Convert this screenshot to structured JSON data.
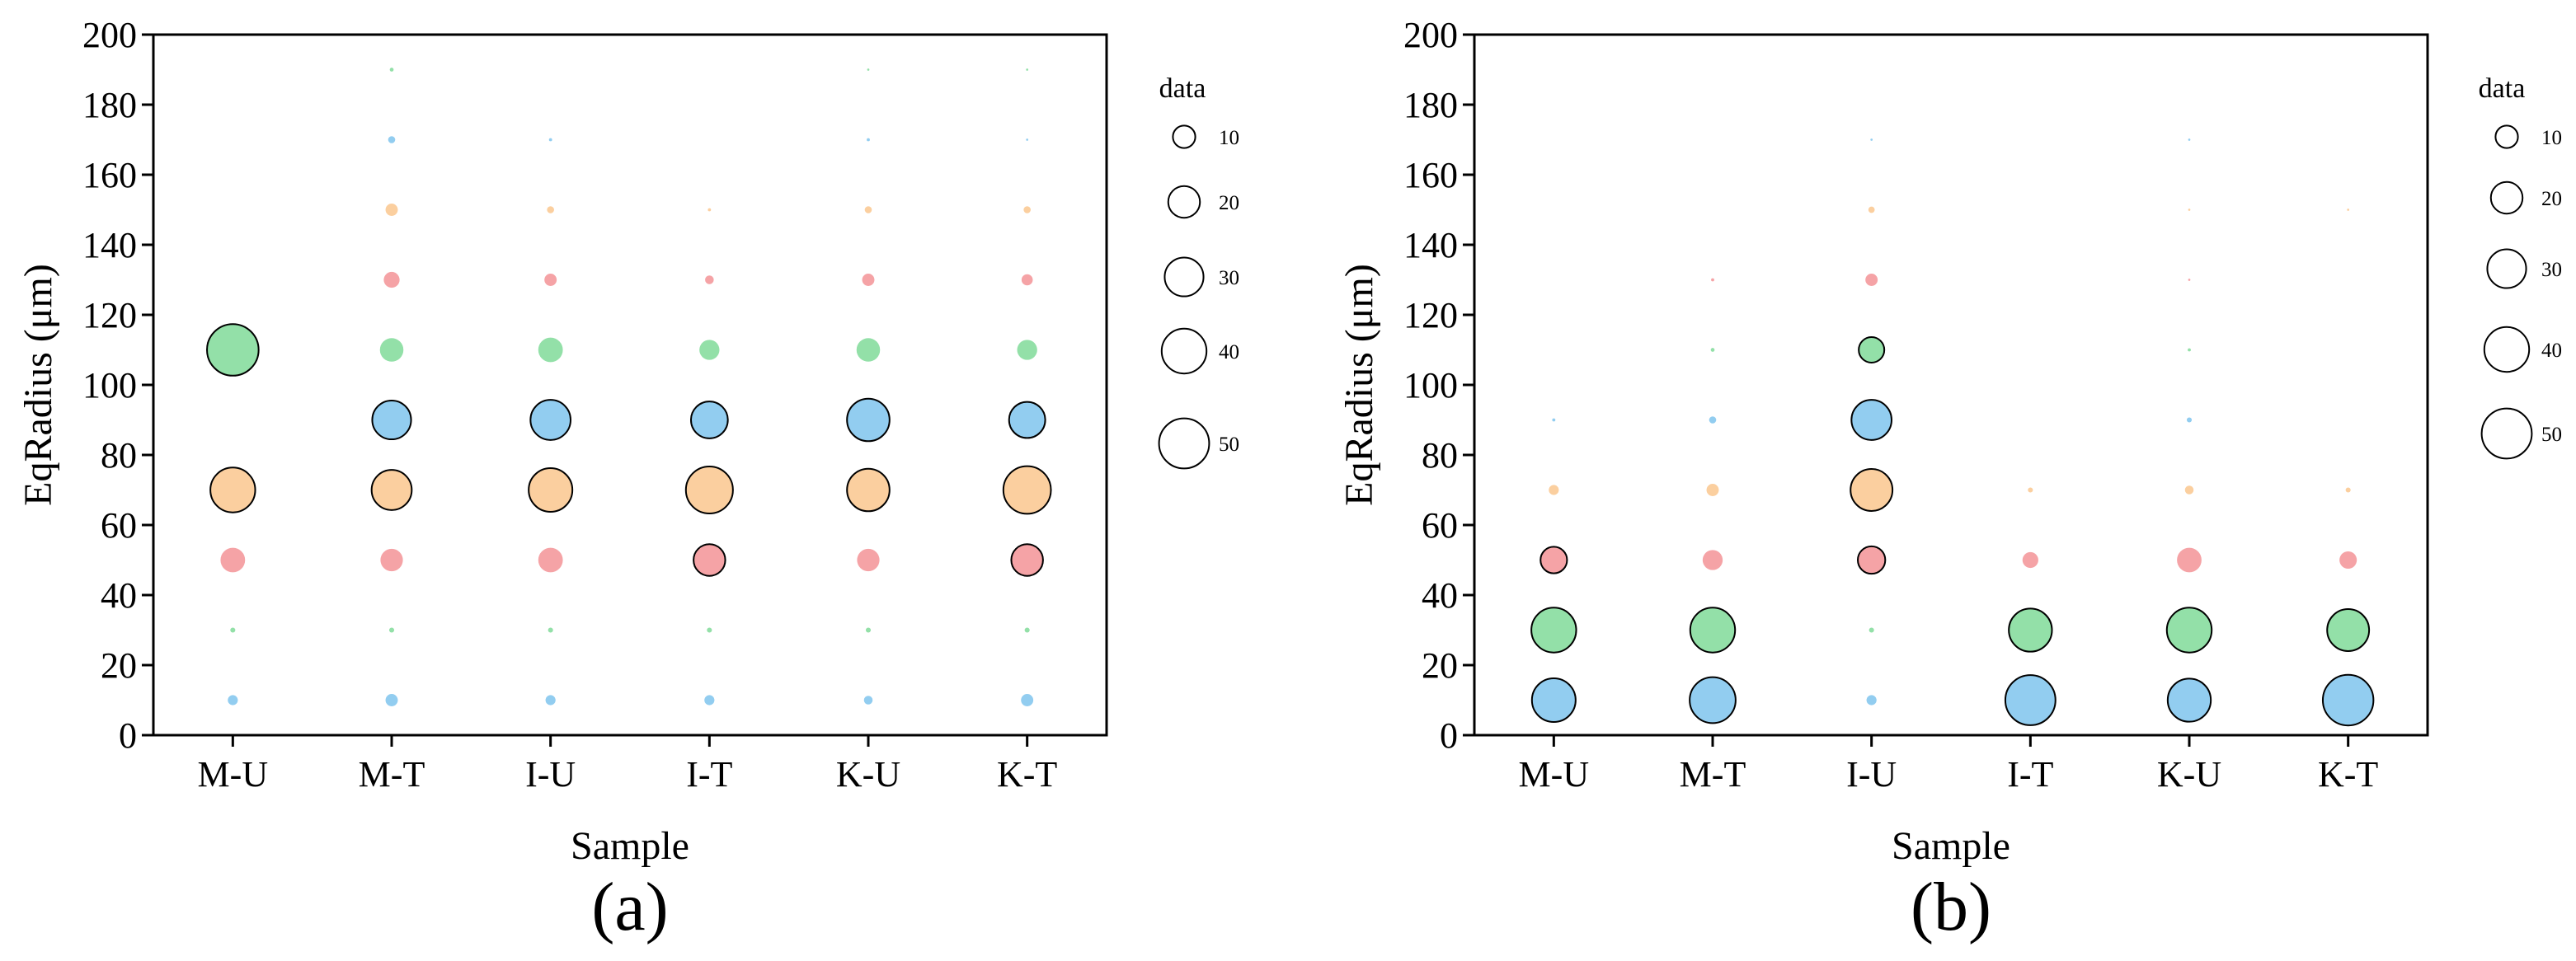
{
  "chart_data": [
    {
      "type": "scatter",
      "panel_label": "(a)",
      "xlabel": "Sample",
      "ylabel": "EqRadius (μm)",
      "categories": [
        "M-U",
        "M-T",
        "I-U",
        "I-T",
        "K-U",
        "K-T"
      ],
      "ylim": [
        0,
        200
      ],
      "yticks": [
        0,
        20,
        40,
        60,
        80,
        100,
        120,
        140,
        160,
        180,
        200
      ],
      "grid": false,
      "y_levels": [
        10,
        30,
        50,
        70,
        90,
        110,
        130,
        150,
        170,
        190
      ],
      "level_colors": [
        "#92cdf0",
        "#93e0a8",
        "#f5a3a6",
        "#fbcf9f",
        "#92cdf0",
        "#93e0a8",
        "#f5a3a6",
        "#fbcf9f",
        "#92cdf0",
        "#93e0a8"
      ],
      "values": [
        [
          2,
          0.5,
          12,
          40,
          0,
          53,
          0,
          0,
          0,
          0
        ],
        [
          3,
          0.5,
          10,
          32,
          30,
          11,
          5,
          3,
          1,
          0.3
        ],
        [
          2,
          0.5,
          12,
          38,
          32,
          12,
          3,
          1,
          0.2,
          0
        ],
        [
          2,
          0.5,
          20,
          44,
          27,
          8,
          1.5,
          0.2,
          0,
          0
        ],
        [
          1.5,
          0.5,
          10,
          36,
          36,
          11,
          3,
          1,
          0.2,
          0.1
        ],
        [
          3,
          0.5,
          20,
          45,
          26,
          8,
          2.5,
          1,
          0.1,
          0.1
        ]
      ],
      "legend": {
        "title": "data",
        "entries": [
          10,
          20,
          30,
          40,
          50
        ]
      }
    },
    {
      "type": "scatter",
      "panel_label": "(b)",
      "xlabel": "Sample",
      "ylabel": "EqRadius (μm)",
      "categories": [
        "M-U",
        "M-T",
        "I-U",
        "I-T",
        "K-U",
        "K-T"
      ],
      "ylim": [
        0,
        200
      ],
      "yticks": [
        0,
        20,
        40,
        60,
        80,
        100,
        120,
        140,
        160,
        180,
        200
      ],
      "grid": false,
      "y_levels": [
        10,
        30,
        50,
        70,
        90,
        110,
        130,
        150,
        170
      ],
      "level_colors": [
        "#92cdf0",
        "#93e0a8",
        "#f5a3a6",
        "#fbcf9f",
        "#92cdf0",
        "#93e0a8",
        "#f5a3a6",
        "#fbcf9f",
        "#92cdf0"
      ],
      "values": [
        [
          38,
          40,
          14,
          2,
          0.2,
          0,
          0,
          0,
          0
        ],
        [
          42,
          40,
          8,
          3,
          1,
          0.3,
          0.2,
          0,
          0
        ],
        [
          2,
          0.5,
          15,
          35,
          32,
          13,
          3,
          0.8,
          0.1
        ],
        [
          50,
          37,
          5,
          0.5,
          0,
          0,
          0,
          0,
          0
        ],
        [
          37,
          40,
          12,
          1.5,
          0.5,
          0.2,
          0.1,
          0.1,
          0.1
        ],
        [
          51,
          35,
          6,
          0.5,
          0,
          0,
          0,
          0.1,
          0
        ]
      ],
      "legend": {
        "title": "data",
        "entries": [
          10,
          20,
          30,
          40,
          50
        ]
      }
    }
  ]
}
